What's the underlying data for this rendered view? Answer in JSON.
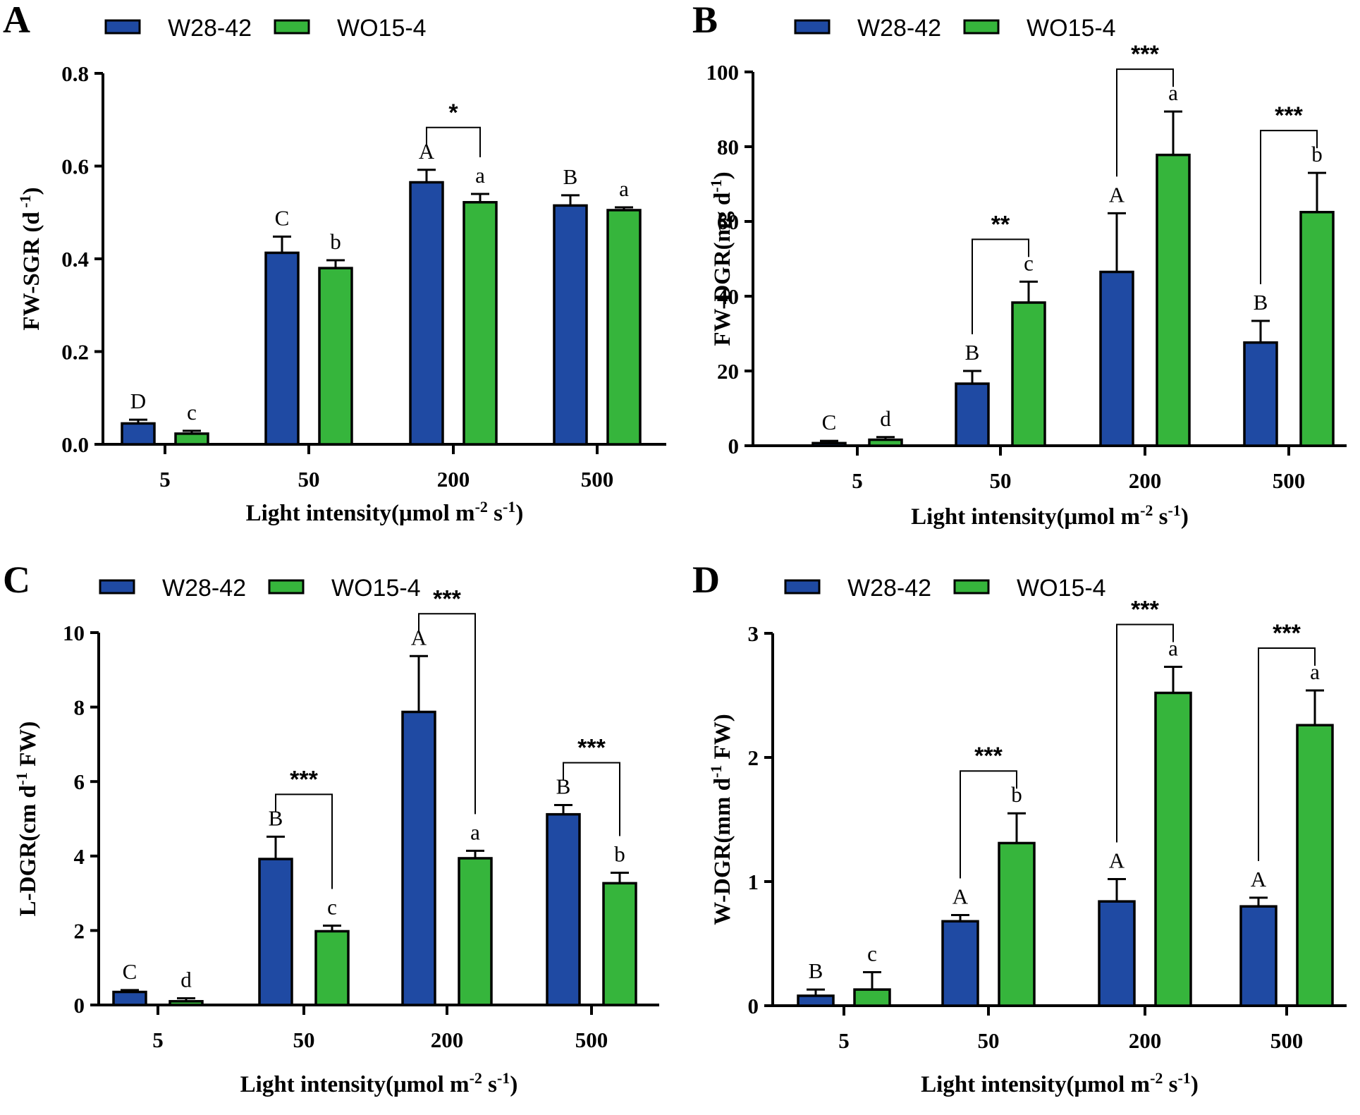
{
  "legend": {
    "series": [
      {
        "name": "W28-42",
        "color": "#1f4aa3"
      },
      {
        "name": "WO15-4",
        "color": "#36b53c"
      }
    ]
  },
  "chart_data": [
    {
      "panel": "A",
      "type": "bar",
      "categories": [
        "5",
        "50",
        "200",
        "500"
      ],
      "xlabel": "Light intensity(μmol m",
      "xlabel_sup1": "-2",
      "xlabel_mid": " s",
      "xlabel_sup2": "-1",
      "xlabel_end": ")",
      "ylabel": "FW-SGR (d",
      "ylabel_sup": " -1",
      "ylabel_end": ")",
      "ylim": [
        0,
        0.8
      ],
      "yticks": [
        "0.0",
        "0.2",
        "0.4",
        "0.6",
        "0.8"
      ],
      "series": [
        {
          "name": "W28-42",
          "values": [
            0.045,
            0.413,
            0.565,
            0.515
          ],
          "errors": [
            0.008,
            0.035,
            0.027,
            0.022
          ],
          "letters": [
            "D",
            "C",
            "A",
            "B"
          ]
        },
        {
          "name": "WO15-4",
          "values": [
            0.023,
            0.38,
            0.522,
            0.505
          ],
          "errors": [
            0.006,
            0.017,
            0.018,
            0.006
          ],
          "letters": [
            "c",
            "b",
            "a",
            "a"
          ]
        }
      ],
      "significance": [
        {
          "category_index": 2,
          "label": "*"
        }
      ]
    },
    {
      "panel": "B",
      "type": "bar",
      "categories": [
        "5",
        "50",
        "200",
        "500"
      ],
      "xlabel": "Light intensity(μmol m",
      "xlabel_sup1": "-2",
      "xlabel_mid": " s",
      "xlabel_sup2": "-1",
      "xlabel_end": ")",
      "ylabel": "FW-DGR(mg d",
      "ylabel_sup": "-1",
      "ylabel_end": ")",
      "ylim": [
        0,
        100
      ],
      "yticks": [
        "0",
        "20",
        "40",
        "60",
        "80",
        "100"
      ],
      "series": [
        {
          "name": "W28-42",
          "values": [
            0.7,
            16.6,
            46.5,
            27.6
          ],
          "errors": [
            0.6,
            3.4,
            15.7,
            5.8
          ],
          "letters": [
            "C",
            "B",
            "A",
            "B"
          ]
        },
        {
          "name": "WO15-4",
          "values": [
            1.6,
            38.3,
            77.8,
            62.5
          ],
          "errors": [
            0.7,
            5.6,
            11.6,
            10.5
          ],
          "letters": [
            "d",
            "c",
            "a",
            "b"
          ]
        }
      ],
      "significance": [
        {
          "category_index": 1,
          "label": "**"
        },
        {
          "category_index": 2,
          "label": "***"
        },
        {
          "category_index": 3,
          "label": "***"
        }
      ]
    },
    {
      "panel": "C",
      "type": "bar",
      "categories": [
        "5",
        "50",
        "200",
        "500"
      ],
      "xlabel": "Light intensity(μmol m",
      "xlabel_sup1": "-2",
      "xlabel_mid": " s",
      "xlabel_sup2": "-1",
      "xlabel_end": ")",
      "ylabel": "L-DGR(cm d",
      "ylabel_sup": "-1",
      "ylabel_end": " FW)",
      "ylim": [
        0,
        10
      ],
      "yticks": [
        "0",
        "2",
        "4",
        "6",
        "8",
        "10"
      ],
      "series": [
        {
          "name": "W28-42",
          "values": [
            0.35,
            3.92,
            7.87,
            5.12
          ],
          "errors": [
            0.05,
            0.6,
            1.5,
            0.25
          ],
          "letters": [
            "C",
            "B",
            "A",
            "B"
          ]
        },
        {
          "name": "WO15-4",
          "values": [
            0.1,
            1.98,
            3.94,
            3.27
          ],
          "errors": [
            0.08,
            0.15,
            0.2,
            0.28
          ],
          "letters": [
            "d",
            "c",
            "a",
            "b"
          ]
        }
      ],
      "significance": [
        {
          "category_index": 1,
          "label": "***"
        },
        {
          "category_index": 2,
          "label": "***"
        },
        {
          "category_index": 3,
          "label": "***"
        }
      ]
    },
    {
      "panel": "D",
      "type": "bar",
      "categories": [
        "5",
        "50",
        "200",
        "500"
      ],
      "xlabel": "Light intensity(μmol m",
      "xlabel_sup1": "-2",
      "xlabel_mid": " s",
      "xlabel_sup2": "-1",
      "xlabel_end": ")",
      "ylabel": "W-DGR(mm d",
      "ylabel_sup": "-1",
      "ylabel_end": " FW)",
      "ylim": [
        0,
        3
      ],
      "yticks": [
        "0",
        "1",
        "2",
        "3"
      ],
      "series": [
        {
          "name": "W28-42",
          "values": [
            0.08,
            0.68,
            0.84,
            0.8
          ],
          "errors": [
            0.05,
            0.05,
            0.18,
            0.07
          ],
          "letters": [
            "B",
            "A",
            "A",
            "A"
          ]
        },
        {
          "name": "WO15-4",
          "values": [
            0.13,
            1.31,
            2.52,
            2.26
          ],
          "errors": [
            0.14,
            0.24,
            0.21,
            0.28
          ],
          "letters": [
            "c",
            "b",
            "a",
            "a"
          ]
        }
      ],
      "significance": [
        {
          "category_index": 1,
          "label": "***"
        },
        {
          "category_index": 2,
          "label": "***"
        },
        {
          "category_index": 3,
          "label": "***"
        }
      ]
    }
  ]
}
